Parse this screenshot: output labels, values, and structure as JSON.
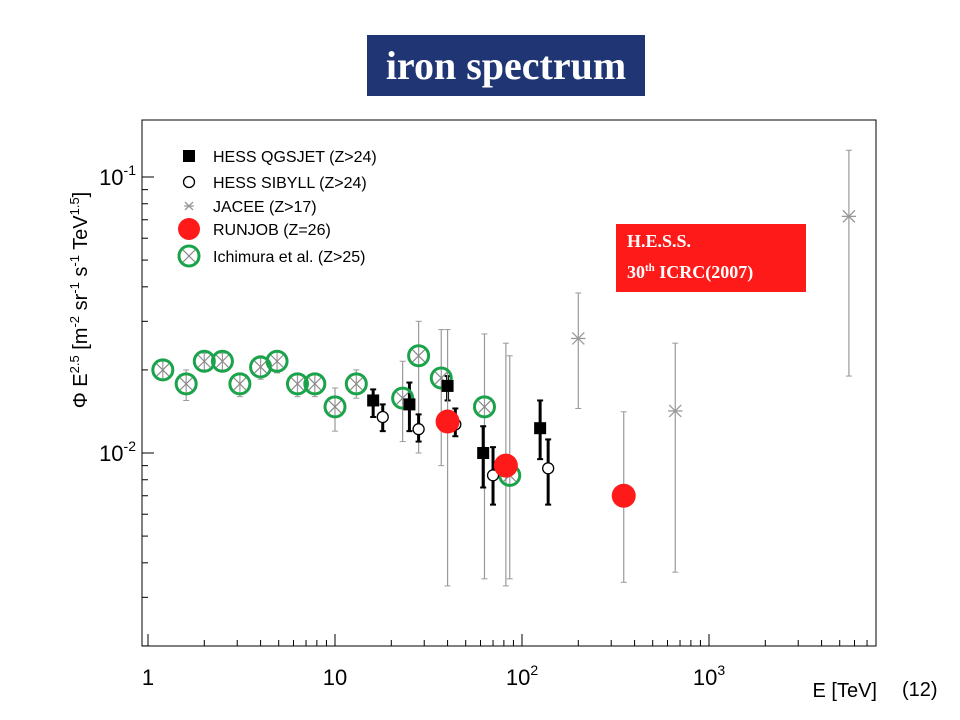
{
  "slide_title": "iron spectrum",
  "slide_number": "(12)",
  "annotation": {
    "line1": "H.E.S.S.",
    "line2_prefix": "30",
    "line2_sup": "th",
    "line2_suffix": " ICRC(2007)"
  },
  "chart_data": {
    "type": "scatter",
    "xlabel": "E [TeV]",
    "ylabel": "Φ E^2.5 [m^-2 sr^-1 s^-1 TeV^1.5]",
    "x_scale": "log",
    "y_scale": "log",
    "xlim": [
      1,
      10000
    ],
    "ylim": [
      0.0025,
      0.15
    ],
    "x_ticks": [
      {
        "value": 1,
        "label": "1"
      },
      {
        "value": 10,
        "label": "10"
      },
      {
        "value": 100,
        "base": "10",
        "exp": "2"
      },
      {
        "value": 1000,
        "base": "10",
        "exp": "3"
      }
    ],
    "y_ticks": [
      {
        "value": 0.01,
        "base": "10",
        "exp": "-2"
      },
      {
        "value": 0.1,
        "base": "10",
        "exp": "-1"
      }
    ],
    "legend_placement": "top-left",
    "series": [
      {
        "name": "HESS QGSJET (Z>24)",
        "marker": "filled-square",
        "color": "#000000",
        "points": [
          {
            "x": 16,
            "y": 0.0155,
            "lo": 0.0135,
            "hi": 0.017
          },
          {
            "x": 25,
            "y": 0.015,
            "lo": 0.012,
            "hi": 0.018
          },
          {
            "x": 40,
            "y": 0.0175,
            "lo": 0.0155,
            "hi": 0.019
          },
          {
            "x": 62,
            "y": 0.01,
            "lo": 0.0075,
            "hi": 0.0125
          },
          {
            "x": 125,
            "y": 0.0123,
            "lo": 0.0095,
            "hi": 0.0155
          }
        ]
      },
      {
        "name": "HESS SIBYLL (Z>24)",
        "marker": "open-circle",
        "color": "#000000",
        "points": [
          {
            "x": 18,
            "y": 0.0135,
            "lo": 0.012,
            "hi": 0.015
          },
          {
            "x": 28,
            "y": 0.0122,
            "lo": 0.011,
            "hi": 0.0138
          },
          {
            "x": 44,
            "y": 0.0127,
            "lo": 0.0115,
            "hi": 0.0145
          },
          {
            "x": 70,
            "y": 0.0083,
            "lo": 0.0065,
            "hi": 0.0105
          },
          {
            "x": 138,
            "y": 0.0088,
            "lo": 0.0065,
            "hi": 0.0112
          }
        ]
      },
      {
        "name": "JACEE (Z>17)",
        "marker": "asterisk",
        "color": "#999999",
        "points": [
          {
            "x": 200,
            "y": 0.026,
            "lo": 0.0145,
            "hi": 0.038
          },
          {
            "x": 660,
            "y": 0.0142,
            "lo": 0.0037,
            "hi": 0.025
          },
          {
            "x": 5600,
            "y": 0.072,
            "lo": 0.019,
            "hi": 0.125
          }
        ]
      },
      {
        "name": "RUNJOB (Z=26)",
        "marker": "filled-circle",
        "color": "#ff1a1a",
        "points": [
          {
            "x": 40,
            "y": 0.013,
            "lo": 0.0033,
            "hi": 0.028
          },
          {
            "x": 82,
            "y": 0.009,
            "lo": 0.0033,
            "hi": 0.025
          },
          {
            "x": 350,
            "y": 0.007,
            "lo": 0.0034,
            "hi": 0.0141
          }
        ]
      },
      {
        "name": "Ichimura et al. (Z>25)",
        "marker": "circled-cross",
        "color": "#1aa34a",
        "points": [
          {
            "x": 1.2,
            "y": 0.02,
            "lo": 0.0185,
            "hi": 0.0215
          },
          {
            "x": 1.6,
            "y": 0.0178,
            "lo": 0.0155,
            "hi": 0.02
          },
          {
            "x": 2.0,
            "y": 0.0215,
            "lo": 0.02,
            "hi": 0.023
          },
          {
            "x": 2.5,
            "y": 0.0215,
            "lo": 0.02,
            "hi": 0.023
          },
          {
            "x": 3.1,
            "y": 0.0178,
            "lo": 0.016,
            "hi": 0.0195
          },
          {
            "x": 4.0,
            "y": 0.0205,
            "lo": 0.0185,
            "hi": 0.0225
          },
          {
            "x": 4.9,
            "y": 0.0215,
            "lo": 0.0195,
            "hi": 0.0235
          },
          {
            "x": 6.3,
            "y": 0.0178,
            "lo": 0.016,
            "hi": 0.0195
          },
          {
            "x": 7.8,
            "y": 0.0178,
            "lo": 0.016,
            "hi": 0.0195
          },
          {
            "x": 10,
            "y": 0.0147,
            "lo": 0.012,
            "hi": 0.0172
          },
          {
            "x": 13,
            "y": 0.0178,
            "lo": 0.0158,
            "hi": 0.02
          },
          {
            "x": 23,
            "y": 0.0158,
            "lo": 0.011,
            "hi": 0.0215
          },
          {
            "x": 28,
            "y": 0.0225,
            "lo": 0.01,
            "hi": 0.03
          },
          {
            "x": 37,
            "y": 0.0187,
            "lo": 0.009,
            "hi": 0.028
          },
          {
            "x": 63,
            "y": 0.0147,
            "lo": 0.0035,
            "hi": 0.027
          },
          {
            "x": 86,
            "y": 0.0083,
            "lo": 0.0035,
            "hi": 0.0225
          }
        ]
      }
    ]
  }
}
